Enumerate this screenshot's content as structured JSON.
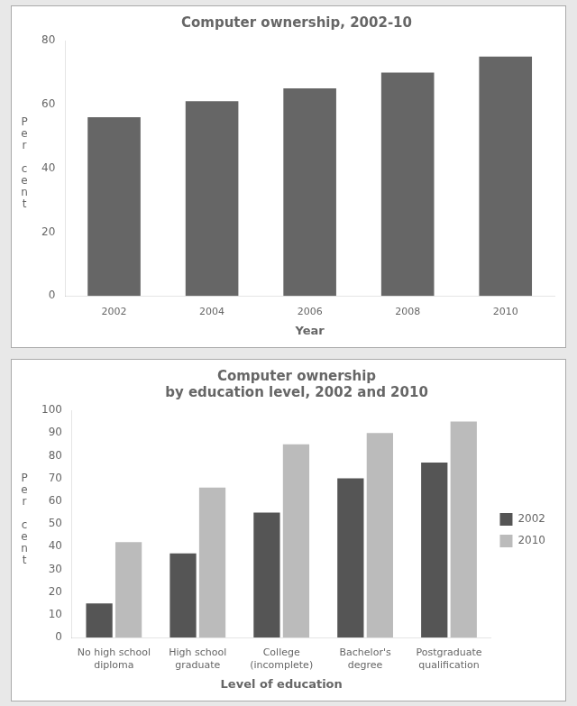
{
  "chart_data": [
    {
      "type": "bar",
      "title": "Computer ownership, 2002-10",
      "categories": [
        "2002",
        "2004",
        "2006",
        "2008",
        "2010"
      ],
      "values": [
        56,
        61,
        65,
        70,
        75
      ],
      "color": "#666666",
      "xlabel": "Year",
      "ylabel": "P\ne\nr\n \nc\ne\nn\nt",
      "ylim": [
        0,
        80
      ],
      "yticks": [
        0,
        20,
        40,
        60,
        80
      ],
      "grid": false
    },
    {
      "type": "bar",
      "title": "Computer ownership\nby education level, 2002 and 2010",
      "categories": [
        "No high school\ndiploma",
        "High school\ngraduate",
        "College\n(incomplete)",
        "Bachelor's\ndegree",
        "Postgraduate\nqualification"
      ],
      "series": [
        {
          "name": "2002",
          "color": "#555555",
          "values": [
            15,
            37,
            55,
            70,
            77
          ]
        },
        {
          "name": "2010",
          "color": "#bbbbbb",
          "values": [
            42,
            66,
            85,
            90,
            95
          ]
        }
      ],
      "xlabel": "Level of education",
      "ylabel": "P\ne\nr\n \nc\ne\nn\nt",
      "ylim": [
        0,
        100
      ],
      "yticks": [
        0,
        10,
        20,
        30,
        40,
        50,
        60,
        70,
        80,
        90,
        100
      ],
      "grid": false,
      "legend": "right"
    }
  ]
}
